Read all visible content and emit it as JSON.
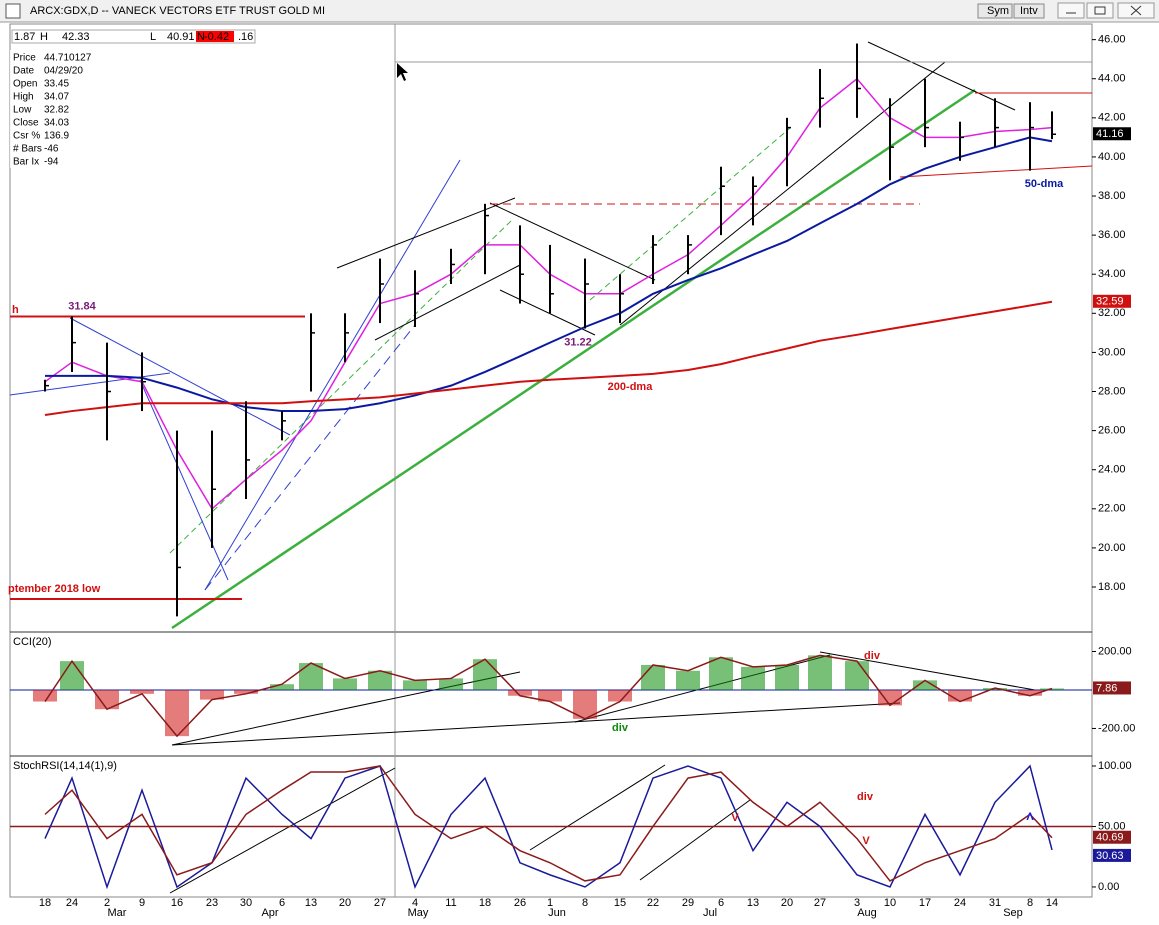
{
  "window": {
    "title": "ARCX:GDX,D -- VANECK VECTORS ETF TRUST GOLD MI",
    "buttons": [
      "Sym",
      "Intv"
    ]
  },
  "toolbar": [
    "1.87",
    "H",
    "42.33",
    "L",
    "40.91",
    "N",
    "-0.42",
    ".16"
  ],
  "data_window": {
    "labels": [
      "Price",
      "Date",
      "Open",
      "High",
      "Low",
      "Close",
      "Csr %",
      "# Bars",
      "Bar Ix"
    ],
    "values": [
      "44.710127",
      "04/29/20",
      "33.45",
      "34.07",
      "32.82",
      "34.03",
      "136.9",
      "-46",
      "-94"
    ]
  },
  "chart_data": [
    {
      "type": "ohlc",
      "categories": [
        "18",
        "24",
        "2",
        "9",
        "16",
        "23",
        "30",
        "6",
        "13",
        "20",
        "27",
        "4",
        "11",
        "18",
        "26",
        "1",
        "8",
        "15",
        "22",
        "29",
        "6",
        "13",
        "20",
        "27",
        "3",
        "10",
        "17",
        "24",
        "31",
        "8",
        "14"
      ],
      "months": [
        "Mar",
        "Apr",
        "May",
        "Jun",
        "Jul",
        "Aug",
        "Sep"
      ],
      "high": [
        28.6,
        31.84,
        30.5,
        30,
        26,
        26,
        27.5,
        27,
        32,
        32,
        34.8,
        34.2,
        35.3,
        37.6,
        36.5,
        35.5,
        34.8,
        34,
        36,
        36,
        39.5,
        39,
        42,
        44.5,
        45.8,
        43,
        44,
        41.8,
        43,
        42.8,
        42.33
      ],
      "low": [
        28,
        29,
        25.5,
        27,
        16.5,
        20,
        22.5,
        25.5,
        28,
        29.5,
        31.5,
        31.3,
        33.5,
        34,
        32.5,
        32,
        31.22,
        31.5,
        33.5,
        34,
        36,
        36.5,
        38.5,
        41.5,
        42,
        38.8,
        40.5,
        39.8,
        40.5,
        39.3,
        40.91
      ],
      "close": [
        28.3,
        30.5,
        28,
        28.5,
        19,
        23,
        24.5,
        26.5,
        31,
        31,
        33.5,
        33,
        34.5,
        37,
        34,
        33,
        33.5,
        33,
        35.5,
        35.5,
        38.5,
        38.5,
        41.5,
        43,
        43.5,
        40.5,
        41.5,
        41,
        41.5,
        41.5,
        41.16
      ],
      "bar_color": "#000000",
      "lines": [
        {
          "color": "#e020e0",
          "values": [
            28.5,
            29.5,
            28.8,
            28.5,
            25,
            22,
            23.5,
            25,
            26.5,
            29.5,
            32.5,
            33,
            34,
            35.5,
            35.5,
            34,
            33,
            33,
            34,
            35,
            36.5,
            38,
            40,
            42.5,
            44,
            42,
            41,
            41,
            41.3,
            41.4,
            41.5
          ]
        },
        {
          "color": "#0a1aa0",
          "values": [
            28.8,
            28.8,
            28.8,
            28.7,
            28.2,
            27.6,
            27.2,
            27,
            27,
            27.1,
            27.4,
            27.8,
            28.3,
            29,
            29.8,
            30.5,
            31.3,
            32,
            33,
            33.7,
            34.3,
            35,
            35.7,
            36.6,
            37.6,
            38.6,
            39.4,
            40,
            40.5,
            41,
            40.8
          ]
        },
        {
          "color": "#d01010",
          "values": [
            26.8,
            27,
            27.2,
            27.4,
            27.4,
            27.4,
            27.4,
            27.4,
            27.5,
            27.6,
            27.7,
            27.9,
            28.1,
            28.3,
            28.5,
            28.6,
            28.7,
            28.8,
            28.9,
            29.1,
            29.4,
            29.8,
            30.2,
            30.6,
            30.9,
            31.2,
            31.5,
            31.8,
            32.1,
            32.4,
            32.59
          ]
        }
      ],
      "marked_levels": [
        31.84,
        31.22
      ],
      "level_color": "#7a1a7a",
      "annotations": [
        {
          "text": "200-dma",
          "color": "#d01010"
        },
        {
          "text": "50-dma",
          "color": "#0a1aa0"
        },
        {
          "text": "ptember 2018 low",
          "color": "#d01010"
        },
        {
          "text": "h",
          "color": "#d01010"
        }
      ],
      "ylim": [
        15.8,
        46.8
      ],
      "yticks": [
        {
          "value": 18,
          "label": "18.00"
        },
        {
          "value": 20,
          "label": "20.00"
        },
        {
          "value": 22,
          "label": "22.00"
        },
        {
          "value": 24,
          "label": "24.00"
        },
        {
          "value": 26,
          "label": "26.00"
        },
        {
          "value": 28,
          "label": "28.00"
        },
        {
          "value": 30,
          "label": "30.00"
        },
        {
          "value": 32,
          "label": "32.00"
        },
        {
          "value": 34,
          "label": "34.00"
        },
        {
          "value": 36,
          "label": "36.00"
        },
        {
          "value": 38,
          "label": "38.00"
        },
        {
          "value": 40,
          "label": "40.00"
        },
        {
          "value": 42,
          "label": "42.00"
        },
        {
          "value": 44,
          "label": "44.00"
        },
        {
          "value": 46,
          "label": "46.00"
        }
      ]
    },
    {
      "type": "histogram-line",
      "title": "CCI(20)",
      "values": [
        -60,
        150,
        -100,
        -20,
        -240,
        -50,
        -20,
        30,
        140,
        60,
        100,
        50,
        60,
        160,
        -30,
        -60,
        -150,
        -60,
        130,
        100,
        170,
        120,
        130,
        180,
        150,
        -80,
        50,
        -60,
        10,
        -30,
        7.86
      ],
      "pos_color": "#0a8a0a",
      "neg_color": "#d01010",
      "line_color": "#8b1a1a",
      "annotations": [
        {
          "text": "div",
          "color": "#d01010"
        },
        {
          "text": "div",
          "color": "#0a8a0a"
        }
      ],
      "ylim": [
        -338,
        291
      ],
      "yticks": [
        {
          "value": -200,
          "label": "-200.00"
        },
        {
          "value": 200,
          "label": "200.00"
        }
      ]
    },
    {
      "type": "line",
      "title": "StochRSI(14,14(1),9)",
      "series": [
        {
          "color": "#1a1a9a",
          "values": [
            40,
            90,
            0,
            80,
            0,
            20,
            90,
            60,
            40,
            90,
            100,
            0,
            60,
            90,
            20,
            10,
            0,
            20,
            90,
            100,
            90,
            30,
            70,
            50,
            10,
            0,
            60,
            10,
            70,
            100,
            30.63
          ]
        },
        {
          "color": "#8b1a1a",
          "values": [
            60,
            80,
            40,
            60,
            10,
            20,
            60,
            80,
            95,
            95,
            100,
            60,
            40,
            50,
            30,
            20,
            5,
            10,
            50,
            90,
            95,
            70,
            50,
            70,
            40,
            5,
            20,
            30,
            40,
            60,
            40.69
          ]
        }
      ],
      "annotations": [
        {
          "text": "div",
          "color": "#d01010"
        },
        {
          "text": "V",
          "color": "#d01010"
        },
        {
          "text": "V",
          "color": "#d01010"
        },
        {
          "text": "Λ",
          "color": "#1a1aee"
        }
      ],
      "ylim": [
        -8.3,
        106.6
      ],
      "yticks": [
        {
          "value": 0,
          "label": "0.00"
        },
        {
          "value": 50,
          "label": "50.00"
        },
        {
          "value": 100,
          "label": "100.00"
        }
      ]
    }
  ]
}
